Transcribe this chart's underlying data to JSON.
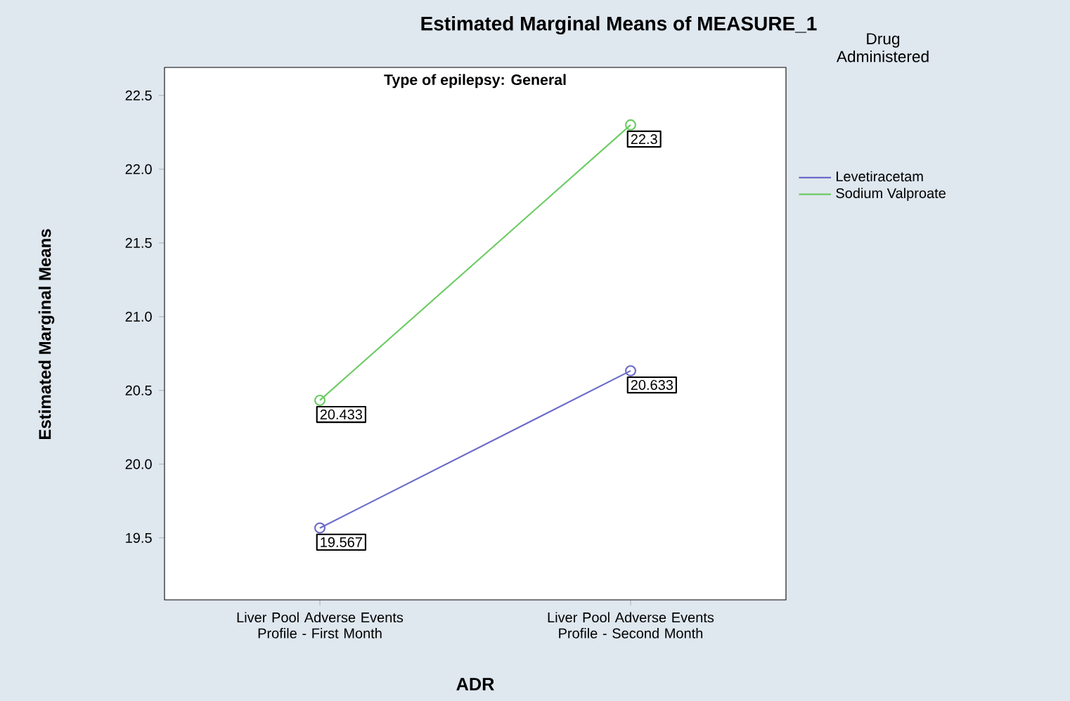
{
  "chart_data": {
    "type": "line",
    "title": "Estimated Marginal Means of MEASURE_1",
    "subtitle": "Type of epilepsy: General",
    "xlabel": "ADR",
    "ylabel": "Estimated Marginal Means",
    "legend_title": "Drug Administered",
    "categories": [
      "Liver Pool Adverse Events Profile - First Month",
      "Liver Pool Adverse Events Profile - Second Month"
    ],
    "series": [
      {
        "name": "Levetiracetam",
        "color": "#6b6bc8",
        "values": [
          19.567,
          20.633
        ]
      },
      {
        "name": "Sodium Valproate",
        "color": "#6ccb64",
        "values": [
          20.433,
          22.3
        ]
      }
    ],
    "ylim": [
      19.08,
      22.69
    ],
    "yticks": [
      19.5,
      {
        "value": 20.0,
        "label": "20.0"
      },
      20.5,
      {
        "value": 21.0,
        "label": "21.0"
      },
      21.5,
      {
        "value": 22.0,
        "label": "22.0"
      },
      22.5
    ],
    "marker": "circle",
    "line_style": "solid",
    "legend": "right",
    "data_labels": true
  }
}
